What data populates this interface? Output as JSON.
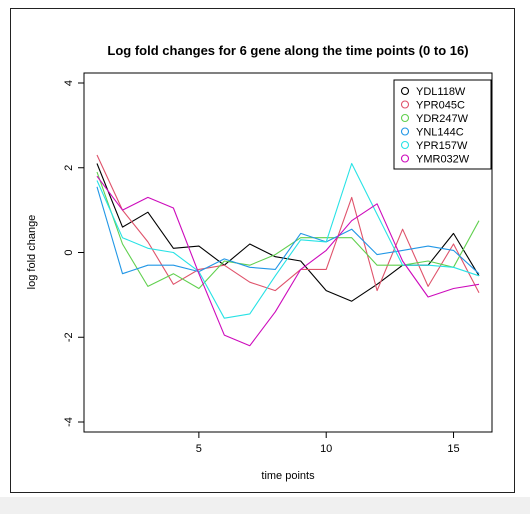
{
  "chart_data": {
    "type": "line",
    "title": "Log fold changes for 6 gene along the time points (0 to 16)",
    "xlabel": "time points",
    "ylabel": "log fold change",
    "xlim": [
      1,
      16
    ],
    "ylim": [
      -4,
      4
    ],
    "x_ticks": [
      5,
      10,
      15
    ],
    "y_ticks": [
      -4,
      -2,
      0,
      2,
      4
    ],
    "grid": false,
    "legend_position": "top-right",
    "x": [
      1,
      2,
      3,
      4,
      5,
      6,
      7,
      8,
      9,
      10,
      11,
      12,
      13,
      14,
      15,
      16
    ],
    "series": [
      {
        "name": "YDL118W",
        "color": "#000000",
        "values": [
          2.1,
          0.6,
          0.95,
          0.1,
          0.15,
          -0.3,
          0.2,
          -0.1,
          -0.2,
          -0.9,
          -1.15,
          -0.75,
          -0.3,
          -0.3,
          0.45,
          -0.55
        ]
      },
      {
        "name": "YPR045C",
        "color": "#df536b",
        "values": [
          2.3,
          1.0,
          0.25,
          -0.75,
          -0.4,
          -0.3,
          -0.7,
          -0.9,
          -0.4,
          -0.4,
          1.3,
          -0.9,
          0.55,
          -0.8,
          0.2,
          -0.95
        ]
      },
      {
        "name": "YDR247W",
        "color": "#61d04f",
        "values": [
          1.9,
          0.2,
          -0.8,
          -0.5,
          -0.85,
          -0.2,
          -0.3,
          -0.05,
          0.35,
          0.35,
          0.35,
          -0.3,
          -0.3,
          -0.2,
          -0.35,
          0.75
        ]
      },
      {
        "name": "YNL144C",
        "color": "#2297e6",
        "values": [
          1.55,
          -0.5,
          -0.3,
          -0.3,
          -0.45,
          -0.15,
          -0.35,
          -0.4,
          0.45,
          0.25,
          0.55,
          -0.05,
          0.05,
          0.15,
          0.05,
          -0.5
        ]
      },
      {
        "name": "YPR157W",
        "color": "#28e2e5",
        "values": [
          1.7,
          0.35,
          0.1,
          0.0,
          -0.45,
          -1.55,
          -1.45,
          -0.55,
          0.3,
          0.25,
          2.1,
          0.9,
          -0.3,
          -0.3,
          -0.35,
          -0.55
        ]
      },
      {
        "name": "YMR032W",
        "color": "#cd0bbc",
        "values": [
          1.8,
          1.0,
          1.3,
          1.05,
          -0.5,
          -1.95,
          -2.2,
          -1.4,
          -0.4,
          0.05,
          0.75,
          1.15,
          -0.2,
          -1.05,
          -0.85,
          -0.75
        ]
      }
    ]
  }
}
